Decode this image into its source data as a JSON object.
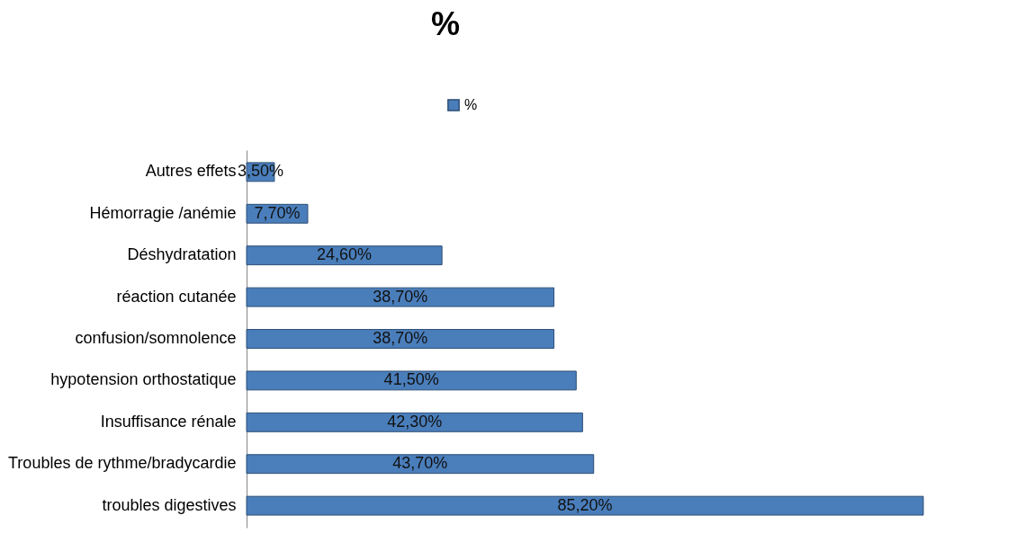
{
  "chart_data": {
    "type": "bar",
    "orientation": "horizontal",
    "title": "%",
    "legend": "top",
    "categories": [
      "Autres effets",
      "Hémorragie /anémie",
      "Déshydratation",
      "réaction cutanée",
      "confusion/somnolence ",
      "hypotension orthostatique",
      "Insuffisance rénale",
      "Troubles de rythme/bradycardie",
      "troubles digestives"
    ],
    "series": [
      {
        "name": "%",
        "color": "#4a7ebb",
        "values": [
          3.5,
          7.7,
          24.6,
          38.7,
          38.7,
          41.5,
          42.3,
          43.7,
          85.2
        ],
        "value_labels": [
          "3,50%",
          "7,70%",
          "24,60%",
          "38,70%",
          "38,70%",
          "41,50%",
          "42,30%",
          "43,70%",
          "85,20%"
        ]
      }
    ]
  }
}
